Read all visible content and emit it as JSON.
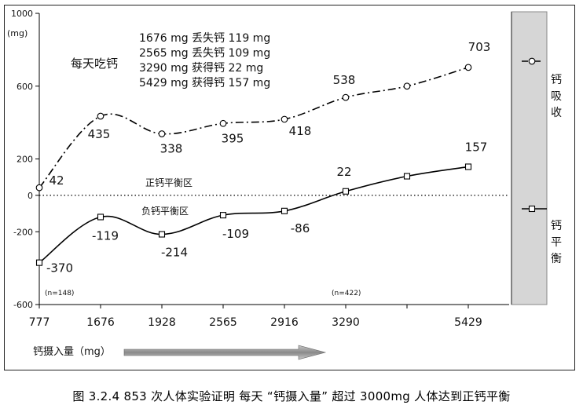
{
  "chart_data": {
    "type": "line",
    "categories": [
      "777",
      "1676",
      "1928",
      "2565",
      "2916",
      "3290",
      "",
      "5429"
    ],
    "y_unit": "(mg)",
    "ylim": [
      -600,
      1000
    ],
    "y_ticks": [
      1000,
      600,
      200,
      0,
      -200,
      -600
    ],
    "grid": false,
    "series": [
      {
        "name": "钙吸收",
        "values": [
          42,
          435,
          338,
          395,
          418,
          538,
          600,
          703
        ],
        "point_labels": [
          "42",
          "435",
          "338",
          "395",
          "418",
          "538",
          "",
          "703"
        ],
        "line_style": "dash-dot",
        "marker": "circle"
      },
      {
        "name": "钙平衡",
        "values": [
          -370,
          -119,
          -214,
          -109,
          -86,
          22,
          105,
          157
        ],
        "point_labels": [
          "-370",
          "-119",
          "-214",
          "-109",
          "-86",
          "22",
          "",
          "157"
        ],
        "line_style": "solid",
        "marker": "square"
      }
    ],
    "zero_line_style": "dotted",
    "zone_labels": {
      "positive": "正钙平衡区",
      "negative": "负钙平衡区"
    },
    "title_in_plot": "每天吃钙",
    "annotation_lines": [
      "1676 mg  丢失钙 119 mg",
      "2565 mg  丢失钙 109 mg",
      "3290 mg  获得钙   22 mg",
      "5429 mg  获得钙 157 mg"
    ],
    "sample_notes": [
      "(n=148)",
      "(n=422)"
    ],
    "xlabel": "钙摄入量（mg）",
    "legend_position": "right-panel"
  },
  "caption": "图   3.2.4     853 次人体实验证明 每天 “钙摄入量” 超过 3000mg 人体达到正钙平衡",
  "colors": {
    "panel": "#d6d6d6",
    "line": "#000000",
    "arrow": "#9a9a9a"
  }
}
